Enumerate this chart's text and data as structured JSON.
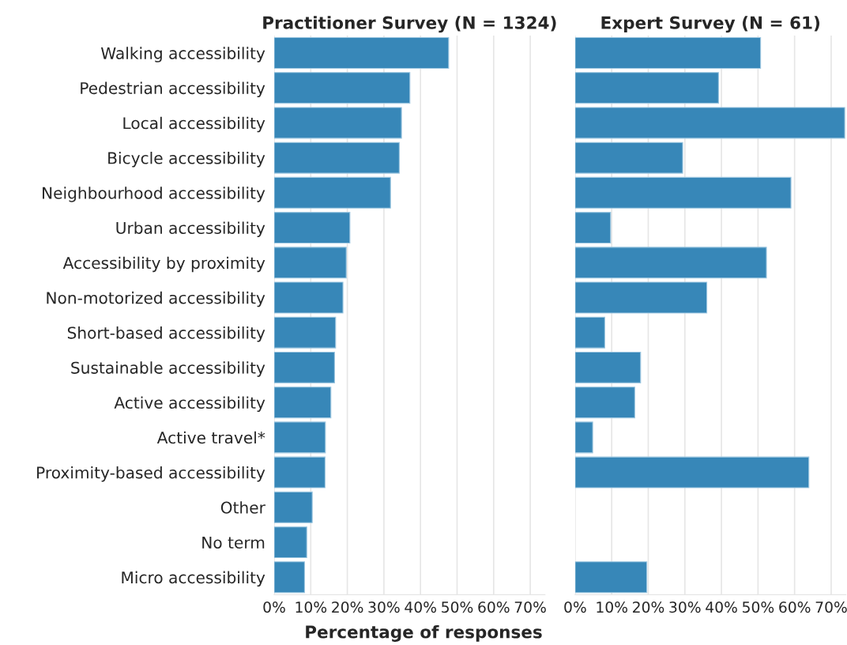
{
  "chart_data": [
    {
      "type": "bar",
      "orientation": "horizontal",
      "title": "Practitioner Survey (N = 1324)",
      "xlabel": "Percentage of responses",
      "categories": [
        "Walking accessibility",
        "Pedestrian accessibility",
        "Local accessibility",
        "Bicycle accessibility",
        "Neighbourhood accessibility",
        "Urban accessibility",
        "Accessibility by proximity",
        "Non-motorized accessibility",
        "Short-based accessibility",
        "Sustainable accessibility",
        "Active accessibility",
        "Active travel*",
        "Proximity-based accessibility",
        "Other",
        "No term",
        "Micro accessibility"
      ],
      "values": [
        47.7,
        37.1,
        34.8,
        34.2,
        31.8,
        20.7,
        19.7,
        18.8,
        16.8,
        16.5,
        15.5,
        14.0,
        13.9,
        10.4,
        8.9,
        8.3
      ],
      "color": "#3787b8",
      "xlim": [
        0,
        74
      ],
      "xticks": [
        {
          "value": 0,
          "label": "0%"
        },
        {
          "value": 10,
          "label": "10%"
        },
        {
          "value": 20,
          "label": "20%"
        },
        {
          "value": 30,
          "label": "30%"
        },
        {
          "value": 40,
          "label": "40%"
        },
        {
          "value": 50,
          "label": "50%"
        },
        {
          "value": 60,
          "label": "60%"
        },
        {
          "value": 70,
          "label": "70%"
        }
      ],
      "grid": "x"
    },
    {
      "type": "bar",
      "orientation": "horizontal",
      "title": "Expert Survey (N = 61)",
      "categories": [
        null,
        null,
        null,
        null,
        null,
        null,
        null,
        null,
        null,
        null,
        null,
        null,
        null,
        null,
        null,
        null
      ],
      "values": [
        50.7,
        39.2,
        73.7,
        29.4,
        59.0,
        9.7,
        52.3,
        36.0,
        8.1,
        17.9,
        16.3,
        4.8,
        63.9,
        null,
        null,
        19.6
      ],
      "color": "#3787b8",
      "xlim": [
        0,
        74
      ],
      "xticks": [
        {
          "value": 0,
          "label": "0%"
        },
        {
          "value": 10,
          "label": "10%"
        },
        {
          "value": 20,
          "label": "20%"
        },
        {
          "value": 30,
          "label": "30%"
        },
        {
          "value": 40,
          "label": "40%"
        },
        {
          "value": 50,
          "label": "50%"
        },
        {
          "value": 60,
          "label": "60%"
        },
        {
          "value": 70,
          "label": "70%"
        }
      ],
      "grid": "x",
      "tick_labels": "x"
    }
  ]
}
